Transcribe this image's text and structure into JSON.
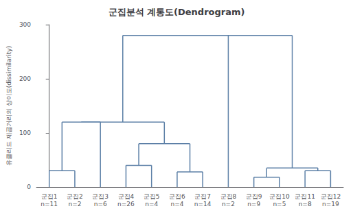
{
  "chart_data": {
    "type": "dendrogram",
    "title": "군집분석 계통도(Dendrogram)",
    "ylabel": "유클리드 제곱거리의 상이도(dissimilarity)",
    "categories": [
      "군집1",
      "군집2",
      "군집3",
      "군집4",
      "군집5",
      "군집6",
      "군집7",
      "군집8",
      "군집9",
      "군집10",
      "군집11",
      "군집12"
    ],
    "sizes": [
      "n=11",
      "n=2",
      "n=6",
      "n=26",
      "n=4",
      "n=4",
      "n=14",
      "n=2",
      "n=9",
      "n=5",
      "n=8",
      "n=19"
    ],
    "tree": {
      "height": 280,
      "children": [
        {
          "height": 120,
          "children": [
            {
              "height": 120,
              "children": [
                {
                  "height": 30,
                  "children": [
                    "군집1",
                    "군집2"
                  ]
                },
                "군집3"
              ]
            },
            {
              "height": 80,
              "children": [
                {
                  "height": 40,
                  "children": [
                    "군집4",
                    "군집5"
                  ]
                },
                {
                  "height": 28,
                  "children": [
                    "군집6",
                    "군집7"
                  ]
                }
              ]
            }
          ]
        },
        "군집8",
        {
          "height": 35,
          "children": [
            {
              "height": 18,
              "children": [
                "군집9",
                "군집10"
              ]
            },
            {
              "height": 30,
              "children": [
                "군집11",
                "군집12"
              ]
            }
          ]
        }
      ]
    },
    "color": "#5b7fa6",
    "ylim": [
      0,
      300
    ],
    "yticks": [
      0,
      100,
      200,
      300
    ],
    "grid": false
  }
}
